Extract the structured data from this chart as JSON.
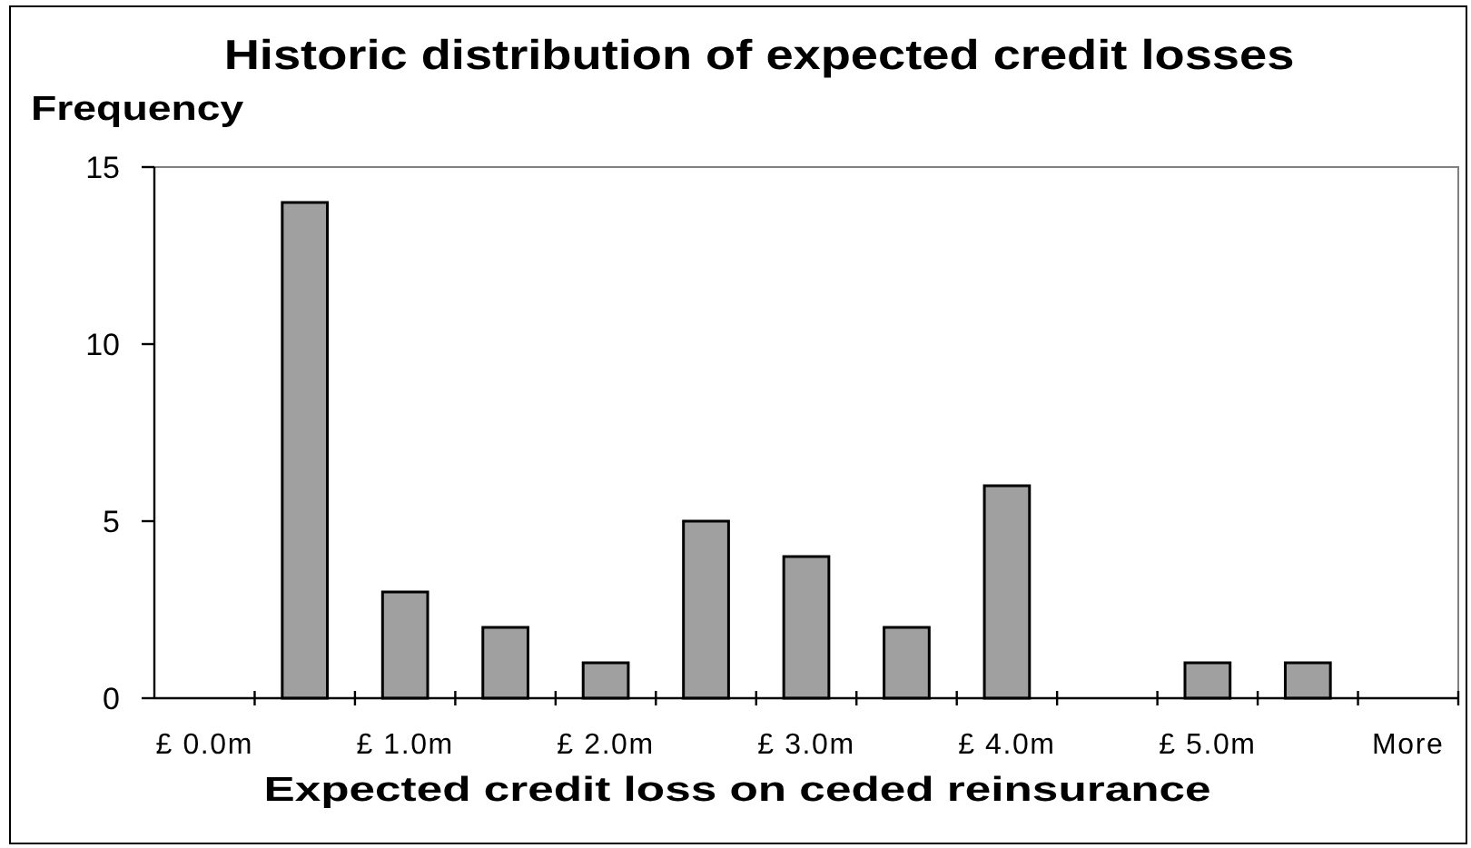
{
  "chart_data": {
    "type": "bar",
    "title": "Historic distribution of expected credit losses",
    "ylabel": "Frequency",
    "xlabel": "Expected credit loss on ceded reinsurance",
    "categories": [
      "£ 0.0m",
      null,
      "£ 1.0m",
      null,
      "£ 2.0m",
      null,
      "£ 3.0m",
      null,
      "£ 4.0m",
      null,
      "£ 5.0m",
      null,
      "More"
    ],
    "values": [
      0,
      14,
      3,
      2,
      1,
      5,
      4,
      2,
      6,
      0,
      1,
      1,
      0
    ],
    "color": "#a0a0a0",
    "ylim": [
      0,
      15
    ],
    "yticks": [
      0,
      5,
      10,
      15
    ]
  }
}
